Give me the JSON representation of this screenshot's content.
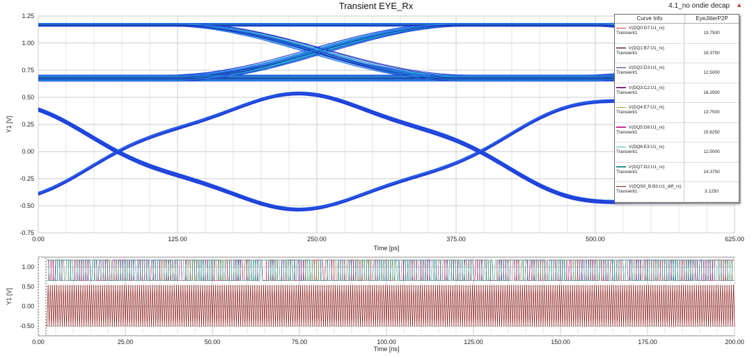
{
  "header": {
    "title": "Transient EYE_Rx",
    "subtitle": "4.1_no ondie decap",
    "marker_icon": "triangle-marker"
  },
  "legend": {
    "col1": "Curve Info",
    "col2": "EyeJitterP2P",
    "rows": [
      {
        "name": "V(DQ0:D7:U1_rx)",
        "sub": "Transient1",
        "value": "13.7500",
        "color": "#d04040"
      },
      {
        "name": "V(DQ1:B7:U1_rx)",
        "sub": "Transient1",
        "value": "19.3750",
        "color": "#806070"
      },
      {
        "name": "V(DQ2:D3:U1_rx)",
        "sub": "Transient1",
        "value": "12.5000",
        "color": "#303080"
      },
      {
        "name": "V(DQ3:C2:U1_rx)",
        "sub": "Transient1",
        "value": "16.2500",
        "color": "#803080"
      },
      {
        "name": "V(DQ4:E7:U1_rx)",
        "sub": "Transient1",
        "value": "13.7500",
        "color": "#a0a040"
      },
      {
        "name": "V(DQ5:D8:U1_rx)",
        "sub": "Transient1",
        "value": "15.6250",
        "color": "#d03090"
      },
      {
        "name": "V(DQ6:E3:U1_rx)",
        "sub": "Transient1",
        "value": "12.5000",
        "color": "#40c0b0"
      },
      {
        "name": "V(DQ7:D2:U1_rx)",
        "sub": "Transient1",
        "value": "14.3750",
        "color": "#309090"
      },
      {
        "name": "V(DQS0_B:B3:U1_diff_rx)",
        "sub": "Transient1",
        "value": "3.1250",
        "color": "#802020"
      }
    ]
  },
  "chart_data": [
    {
      "type": "line",
      "title": "Transient EYE_Rx",
      "xlabel": "Time [ps]",
      "ylabel": "Y1 [V]",
      "xlim": [
        0,
        625
      ],
      "ylim": [
        -0.75,
        1.25
      ],
      "xticks": [
        "0.00",
        "125.00",
        "250.00",
        "375.00",
        "500.00",
        "625.00"
      ],
      "yticks": [
        "1.25",
        "1.00",
        "0.75",
        "0.50",
        "0.25",
        "0.00",
        "-0.25",
        "-0.50",
        "-0.75"
      ],
      "series": [
        {
          "name": "DQ eye",
          "levels": [
            0.65,
            1.18
          ],
          "crossing": [
            250,
            0.95
          ]
        },
        {
          "name": "DQS diff eye",
          "levels": [
            -0.5,
            0.5
          ],
          "crossings": [
            78,
            390
          ]
        }
      ]
    },
    {
      "type": "line",
      "xlabel": "Time [ns]",
      "ylabel": "Y1 [V]",
      "xlim": [
        0,
        200
      ],
      "ylim": [
        -0.75,
        1.25
      ],
      "xticks": [
        "0.00",
        "25.00",
        "50.00",
        "75.00",
        "100.00",
        "125.00",
        "150.00",
        "175.00",
        "200.00"
      ],
      "yticks": [
        "1.00",
        "0.50",
        "0.00",
        "-0.50"
      ],
      "series": [
        {
          "name": "DQ waveforms",
          "range": [
            0.62,
            1.2
          ]
        },
        {
          "name": "DQS diff",
          "range": [
            -0.52,
            0.55
          ]
        }
      ]
    }
  ]
}
